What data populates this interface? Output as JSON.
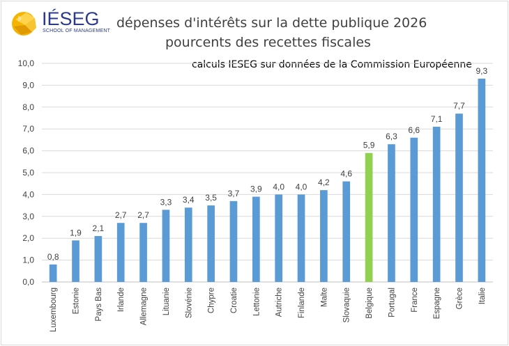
{
  "logo": {
    "word": "IÉSEG",
    "subtitle": "SCHOOL OF MANAGEMENT",
    "brand_color": "#2b3a8c",
    "accent_color": "#f5b400"
  },
  "colors": {
    "bar": "#5b9bd5",
    "highlight": "#92d050",
    "grid": "#d9d9d9",
    "text": "#404040"
  },
  "chart_data": {
    "type": "bar",
    "title": "dépenses d'intérêts sur la dette publique 2026",
    "subtitle": "pourcents des recettes fiscales",
    "annotation": "calculs IESEG sur données de la Commission Européenne",
    "categories": [
      "Luxembourg",
      "Estonie",
      "Pays Bas",
      "Irlande",
      "Allemagne",
      "Lituanie",
      "Slovénie",
      "Chypre",
      "Croatie",
      "Lettonie",
      "Autriche",
      "Finlande",
      "Malte",
      "Slovaquie",
      "Belgique",
      "Portugal",
      "France",
      "Espagne",
      "Grèce",
      "Italie"
    ],
    "values": [
      0.8,
      1.9,
      2.1,
      2.7,
      2.7,
      3.3,
      3.4,
      3.5,
      3.7,
      3.9,
      4.0,
      4.0,
      4.2,
      4.6,
      5.9,
      6.3,
      6.6,
      7.1,
      7.7,
      9.3
    ],
    "value_labels": [
      "0,8",
      "1,9",
      "2,1",
      "2,7",
      "2,7",
      "3,3",
      "3,4",
      "3,5",
      "3,7",
      "3,9",
      "4,0",
      "4,0",
      "4,2",
      "4,6",
      "5,9",
      "6,3",
      "6,6",
      "7,1",
      "7,7",
      "9,3"
    ],
    "highlighted_category": "Belgique",
    "ylim": [
      0,
      10
    ],
    "y_ticks": [
      "0,0",
      "1,0",
      "2,0",
      "3,0",
      "4,0",
      "5,0",
      "6,0",
      "7,0",
      "8,0",
      "9,0",
      "10,0"
    ],
    "xlabel": "",
    "ylabel": "",
    "grid": true,
    "legend": "none"
  }
}
